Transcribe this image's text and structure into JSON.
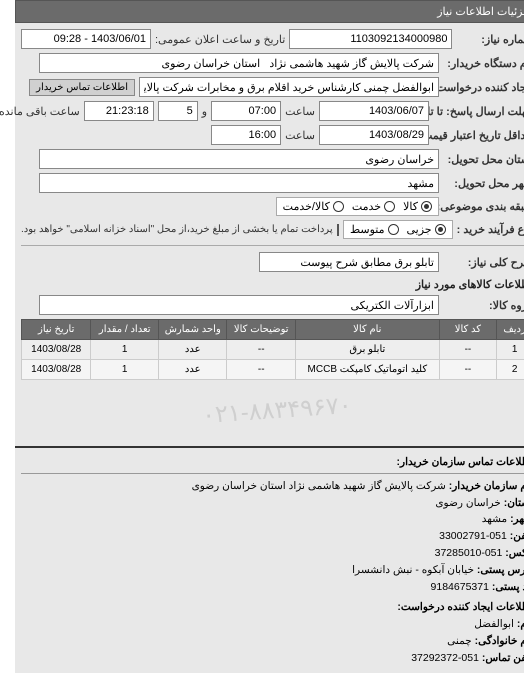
{
  "header": {
    "title": "جزئیات اطلاعات نیاز"
  },
  "fields": {
    "need_no_label": "شماره نیاز:",
    "need_no": "1103092134000980",
    "announce_label": "تاریخ و ساعت اعلان عمومی:",
    "announce_value": "1403/06/01 - 09:28",
    "buyer_org_label": "نام دستگاه خریدار:",
    "buyer_org": "شرکت پالایش گاز شهید هاشمی نژاد   استان خراسان رضوی",
    "requester_label": "ایجاد کننده درخواست:",
    "requester": "ابوالفضل چمنی کارشناس خرید اقلام برق و مخابرات شرکت پالایش گاز شهید ه",
    "contact_btn": "اطلاعات تماس خریدار",
    "answer_deadline_label": "مهلت ارسال پاسخ: تا تاریخ:",
    "answer_date": "1403/06/07",
    "answer_time_label": "ساعت",
    "answer_time": "07:00",
    "day_label": "و",
    "days": "5",
    "remain_label": "ساعت باقی مانده",
    "remain_time": "21:23:18",
    "validity_label": "حداقل تاریخ اعتبار قیمت: تا تاریخ:",
    "validity_date": "1403/08/29",
    "validity_time_label": "ساعت",
    "validity_time": "16:00",
    "province_label": "استان محل تحویل:",
    "province": "خراسان رضوی",
    "city_label": "شهر محل تحویل:",
    "city": "مشهد",
    "type_label": "طبقه بندی موضوعی:",
    "type_opts": {
      "kala": "کالا",
      "khadmat": "خدمت",
      "both": "کالا/خدمت"
    },
    "type_selected": "kala",
    "process_label": "نوع فرآیند خرید :",
    "process_opts": {
      "partial": "جزیی",
      "medium": "متوسط"
    },
    "process_selected": "partial",
    "process_note": "پرداخت تمام یا بخشی از مبلغ خرید،از محل \"اسناد خزانه اسلامی\" خواهد بود.",
    "desc_label": "شرح کلی نیاز:",
    "desc": "تابلو برق مطابق شرح پیوست",
    "items_title": "اطلاعات کالاهای مورد نیاز",
    "group_label": "گروه کالا:",
    "group": "ابزارآلات الکتریکی"
  },
  "table": {
    "columns": [
      "ردیف",
      "کد کالا",
      "نام کالا",
      "توضیحات کالا",
      "واحد شمارش",
      "تعداد / مقدار",
      "تاریخ نیاز"
    ],
    "rows": [
      [
        "1",
        "--",
        "تابلو برق",
        "--",
        "عدد",
        "1",
        "1403/08/28"
      ],
      [
        "2",
        "--",
        "کلید اتوماتیک کامپکت MCCB",
        "--",
        "عدد",
        "1",
        "1403/08/28"
      ]
    ],
    "col_widths": [
      "36px",
      "60px",
      "150px",
      "70px",
      "70px",
      "70px",
      "70px"
    ]
  },
  "watermark": "۰۲۱-۸۸۳۴۹۶۷۰",
  "footer": {
    "title": "اطلاعات تماس سازمان خریدار:",
    "org_lbl": "نام سازمان خریدار:",
    "org": "شرکت پالایش گاز شهید هاشمی نژاد استان خراسان رضوی",
    "province_lbl": "استان:",
    "province": "خراسان رضوی",
    "city_lbl": "شهر:",
    "city": "مشهد",
    "tel_lbl": "تلفن:",
    "tel": "051-33002791",
    "fax_lbl": "فکس:",
    "fax": "051-37285010",
    "addr_lbl": "آدرس پستی:",
    "addr": "خیابان آبکوه - نبش دانشسرا",
    "postcode_lbl": "کد پستی:",
    "postcode": "9184675371",
    "req_creator_title": "اطلاعات ایجاد کننده درخواست:",
    "name_lbl": "نام:",
    "name": "ابوالفضل",
    "fam_lbl": "نام خانوادگی:",
    "fam": "چمنی",
    "tel2_lbl": "تلفن تماس:",
    "tel2": "051-37292372"
  }
}
